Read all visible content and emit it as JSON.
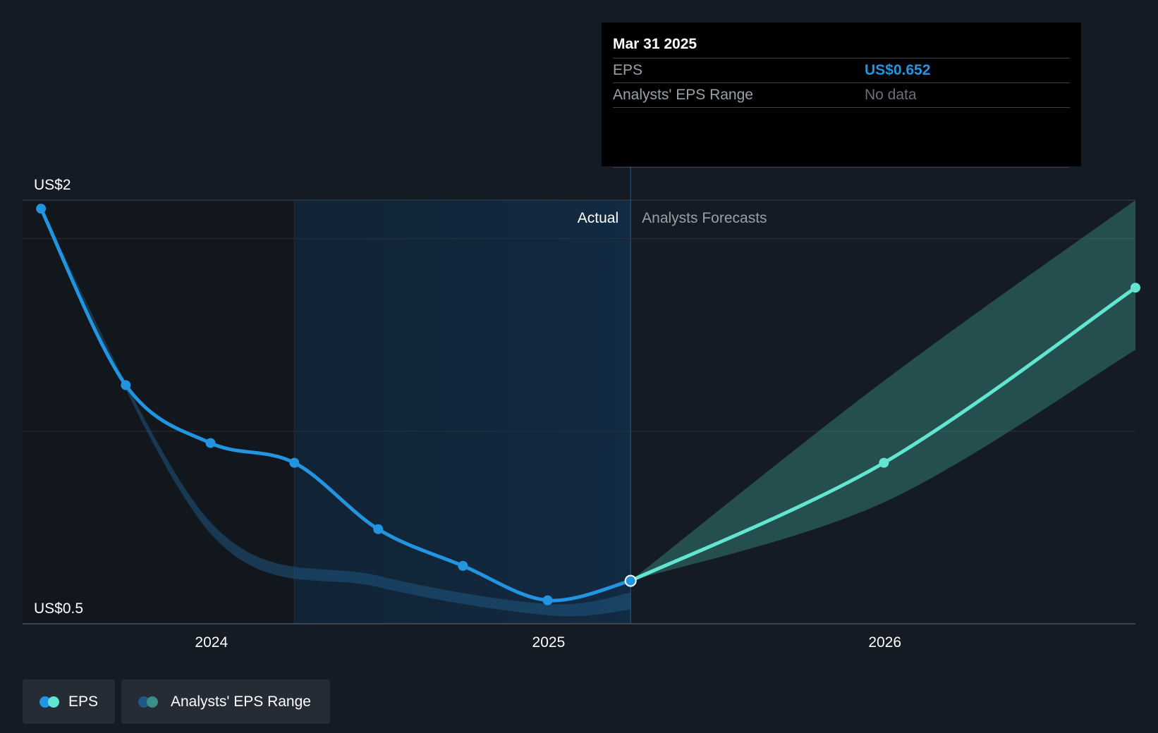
{
  "chart_data": {
    "type": "line",
    "title": "",
    "xlabel": "",
    "ylabel": "",
    "y_tick_labels": [
      {
        "value": 2,
        "label": "US$2"
      },
      {
        "value": 0.5,
        "label": "US$0.5"
      }
    ],
    "ylim": [
      0.5,
      2
    ],
    "x_ticks": [
      {
        "date": "2024-01-01",
        "label": "2024"
      },
      {
        "date": "2025-01-01",
        "label": "2025"
      },
      {
        "date": "2026-01-01",
        "label": "2026"
      }
    ],
    "xlim": [
      "2023-06-10",
      "2026-09-30"
    ],
    "divider_date": "2025-03-31",
    "past_shade_start": "2024-03-31",
    "section_labels": {
      "actual": "Actual",
      "forecast": "Analysts Forecasts"
    },
    "series": [
      {
        "name": "EPS",
        "color": "#2394df",
        "points": [
          {
            "date": "2023-06-30",
            "value": 1.97
          },
          {
            "date": "2023-09-30",
            "value": 1.345
          },
          {
            "date": "2023-12-31",
            "value": 1.14
          },
          {
            "date": "2024-03-31",
            "value": 1.07
          },
          {
            "date": "2024-06-30",
            "value": 0.835
          },
          {
            "date": "2024-09-30",
            "value": 0.705
          },
          {
            "date": "2024-12-31",
            "value": 0.583
          },
          {
            "date": "2025-03-31",
            "value": 0.652
          }
        ]
      },
      {
        "name": "EPS Forecast",
        "color": "#62e6d2",
        "points": [
          {
            "date": "2025-03-31",
            "value": 0.652
          },
          {
            "date": "2025-12-31",
            "value": 1.07
          },
          {
            "date": "2026-09-30",
            "value": 1.69
          }
        ]
      }
    ],
    "past_range_band": {
      "color": "#1f5a86",
      "lower": [
        {
          "date": "2023-06-30",
          "value": 1.97
        },
        {
          "date": "2023-12-31",
          "value": 0.82
        },
        {
          "date": "2024-06-30",
          "value": 0.63
        },
        {
          "date": "2024-12-31",
          "value": 0.53
        },
        {
          "date": "2025-03-31",
          "value": 0.55
        }
      ],
      "upper": [
        {
          "date": "2023-06-30",
          "value": 1.97
        },
        {
          "date": "2023-12-31",
          "value": 0.86
        },
        {
          "date": "2024-06-30",
          "value": 0.67
        },
        {
          "date": "2024-12-31",
          "value": 0.57
        },
        {
          "date": "2025-03-31",
          "value": 0.61
        }
      ]
    },
    "forecast_range_band": {
      "color": "#3a8f86",
      "lower": [
        {
          "date": "2025-03-31",
          "value": 0.652
        },
        {
          "date": "2025-12-31",
          "value": 0.93
        },
        {
          "date": "2026-09-30",
          "value": 1.47
        }
      ],
      "upper": [
        {
          "date": "2025-03-31",
          "value": 0.652
        },
        {
          "date": "2025-12-31",
          "value": 1.36
        },
        {
          "date": "2026-09-30",
          "value": 2.0
        }
      ]
    },
    "grid": true,
    "legend_placement": "bottom-left"
  },
  "tooltip": {
    "date": "Mar 31 2025",
    "rows": [
      {
        "label": "EPS",
        "value": "US$0.652",
        "color": "#2394df"
      },
      {
        "label": "Analysts' EPS Range",
        "value": "No data",
        "color": "#6b7078"
      }
    ]
  },
  "legend": {
    "items": [
      {
        "label": "EPS",
        "colors": [
          "#2394df",
          "#62e6d2"
        ]
      },
      {
        "label": "Analysts' EPS Range",
        "colors": [
          "#1f5a86",
          "#3a8f86"
        ]
      }
    ]
  }
}
